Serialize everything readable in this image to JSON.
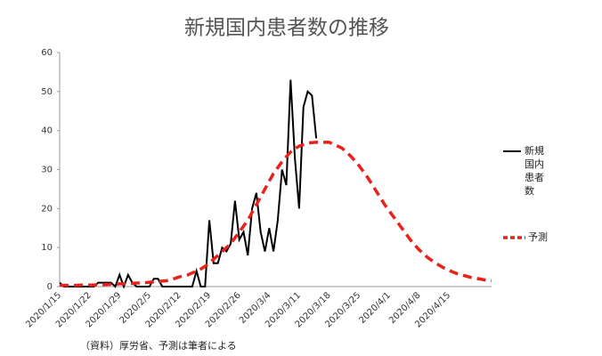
{
  "chart_data": {
    "type": "line",
    "title": "新規国内患者数の推移",
    "source": "（資料）厚労省、予測は筆者による",
    "categories": [
      "2020/1/15",
      null,
      null,
      null,
      null,
      null,
      null,
      "2020/1/22",
      null,
      null,
      null,
      null,
      null,
      null,
      "2020/1/29",
      null,
      null,
      null,
      null,
      null,
      null,
      "2020/2/5",
      null,
      null,
      null,
      null,
      null,
      null,
      "2020/2/12",
      null,
      null,
      null,
      null,
      null,
      null,
      "2020/2/19",
      null,
      null,
      null,
      null,
      null,
      null,
      "2020/2/26",
      null,
      null,
      null,
      null,
      null,
      null,
      "2020/3/4",
      null,
      null,
      null,
      null,
      null,
      null,
      "2020/3/11",
      null,
      null,
      null,
      null,
      null,
      null,
      "2020/3/18",
      null,
      null,
      null,
      null,
      null,
      null,
      "2020/3/25",
      null,
      null,
      null,
      null,
      null,
      null,
      "2020/4/1",
      null,
      null,
      null,
      null,
      null,
      null,
      "2020/4/8",
      null,
      null,
      null,
      null,
      null,
      null,
      "2020/4/15",
      null,
      null,
      null,
      null,
      null,
      null,
      null,
      null,
      null,
      null
    ],
    "series": [
      {
        "name": "新規国内患者数",
        "color": "#000000",
        "line_style": "solid",
        "values": [
          1,
          0,
          0,
          0,
          0,
          0,
          0,
          0,
          0,
          1,
          1,
          1,
          1,
          0,
          3,
          0,
          3,
          1,
          0,
          0,
          0,
          0,
          2,
          2,
          0,
          0,
          0,
          0,
          0,
          0,
          0,
          0,
          4,
          0,
          0,
          17,
          6,
          6,
          10,
          9,
          11,
          22,
          12,
          14,
          8,
          20,
          24,
          14,
          9,
          15,
          9,
          17,
          30,
          26,
          53,
          33,
          20,
          46,
          50,
          49,
          38,
          null,
          null,
          null,
          null,
          null,
          null,
          null,
          null,
          null,
          null,
          null,
          null,
          null,
          null,
          null,
          null,
          null,
          null,
          null,
          null,
          null,
          null,
          null,
          null,
          null,
          null,
          null,
          null,
          null,
          null,
          null,
          null,
          null,
          null,
          null,
          null,
          null,
          null,
          null,
          null,
          null
        ]
      },
      {
        "name": "予測",
        "color": "#e8221b",
        "line_style": "dashed",
        "values": [
          0.3,
          0.3,
          0.3,
          0.3,
          0.3,
          0.4,
          0.4,
          0.4,
          0.4,
          0.5,
          0.5,
          0.5,
          0.6,
          0.6,
          0.7,
          0.7,
          0.8,
          0.8,
          0.9,
          0.9,
          1,
          1.1,
          1.2,
          1.3,
          1.4,
          1.5,
          1.8,
          2.1,
          2.5,
          2.7,
          3,
          3.5,
          4,
          4.5,
          5.2,
          6,
          7,
          8,
          9,
          10,
          11,
          12.5,
          14,
          15.5,
          17,
          19,
          21,
          23,
          25,
          27,
          29,
          30.5,
          32,
          33.3,
          34.5,
          35.3,
          36,
          36.4,
          36.8,
          36.9,
          37,
          37,
          37,
          37,
          36.5,
          36,
          35.5,
          34.5,
          33.5,
          32.3,
          31,
          29.5,
          28,
          26.3,
          24.5,
          22.8,
          21,
          19.5,
          18,
          16.5,
          15,
          13.5,
          12,
          10.7,
          9.5,
          8.5,
          7.5,
          6.7,
          6,
          5.3,
          4.7,
          4.2,
          3.7,
          3.3,
          3,
          2.7,
          2.4,
          2.2,
          2,
          1.8,
          1.6,
          1.5
        ]
      }
    ],
    "ylim": [
      0,
      60
    ],
    "yticks": [
      0,
      10,
      20,
      30,
      40,
      50,
      60
    ],
    "grid": false,
    "legend": "right"
  }
}
